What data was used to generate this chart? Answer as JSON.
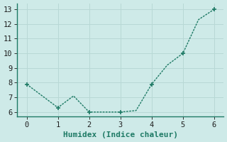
{
  "x": [
    0,
    0.5,
    1,
    1.5,
    2,
    2.5,
    3,
    3.5,
    4,
    4.5,
    5,
    5.5,
    6
  ],
  "y": [
    7.9,
    7.1,
    6.3,
    7.1,
    6.0,
    6.0,
    6.0,
    6.1,
    7.9,
    9.2,
    10.0,
    12.3,
    13.0
  ],
  "marker_x": [
    0,
    1,
    2,
    3,
    4,
    5,
    6
  ],
  "marker_y": [
    7.9,
    6.3,
    6.0,
    6.0,
    7.9,
    10.0,
    13.0
  ],
  "line_color": "#1e7a65",
  "marker_color": "#1e7a65",
  "bg_color": "#ceeae8",
  "grid_color": "#b8d8d5",
  "xlabel": "Humidex (Indice chaleur)",
  "xlim": [
    -0.3,
    6.3
  ],
  "ylim": [
    5.7,
    13.4
  ],
  "yticks": [
    6,
    7,
    8,
    9,
    10,
    11,
    12,
    13
  ],
  "xticks": [
    0,
    1,
    2,
    3,
    4,
    5,
    6
  ],
  "xlabel_fontsize": 8,
  "tick_fontsize": 7.5
}
